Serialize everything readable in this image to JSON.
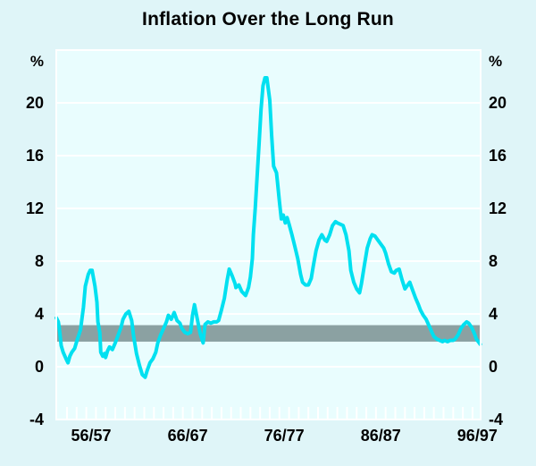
{
  "title": "Inflation Over the Long Run",
  "chart_data": {
    "type": "line",
    "title": "Inflation Over the Long Run",
    "unit_label": "%",
    "ylim": [
      -4,
      24
    ],
    "y_ticks": [
      20,
      16,
      12,
      8,
      4,
      0,
      -4
    ],
    "y_unit_shown_both_sides": true,
    "xlim_fiscal_year": [
      52.89,
      96.84
    ],
    "x_tick_labels": [
      {
        "label": "56/57",
        "year": 56.5
      },
      {
        "label": "66/67",
        "year": 66.5
      },
      {
        "label": "76/77",
        "year": 76.5
      },
      {
        "label": "86/87",
        "year": 86.5
      },
      {
        "label": "96/97",
        "year": 96.5
      }
    ],
    "minor_year_ticks": {
      "from": 54,
      "to": 96,
      "step": 1
    },
    "grid": true,
    "legend": "none",
    "target_band": {
      "low": 1.9,
      "high": 3.15,
      "color": "#8ba1a2"
    },
    "colors": {
      "outer_background": "#dff5f8",
      "plot_background": "#e9fdfe",
      "gridline": "#ffffff",
      "line": "#00e0f0",
      "text": "#000000"
    },
    "series": [
      {
        "name": "Inflation",
        "color": "#00e0f0",
        "x_fiscal_year": [
          52.9,
          53.1,
          53.2,
          53.4,
          53.6,
          53.9,
          54.1,
          54.3,
          54.5,
          54.8,
          55.0,
          55.4,
          55.7,
          55.9,
          56.2,
          56.4,
          56.6,
          56.9,
          57.1,
          57.2,
          57.4,
          57.5,
          57.7,
          57.9,
          58.0,
          58.2,
          58.4,
          58.7,
          59.0,
          59.3,
          59.6,
          59.8,
          60.1,
          60.4,
          60.7,
          60.9,
          61.2,
          61.5,
          61.8,
          62.1,
          62.3,
          62.6,
          62.9,
          63.2,
          63.4,
          63.7,
          64.0,
          64.3,
          64.5,
          64.8,
          65.1,
          65.4,
          65.7,
          65.9,
          66.2,
          66.5,
          66.8,
          67.0,
          67.2,
          67.5,
          67.8,
          68.1,
          68.3,
          68.6,
          68.9,
          69.2,
          69.5,
          69.7,
          70.0,
          70.3,
          70.6,
          70.8,
          71.1,
          71.4,
          71.5,
          71.8,
          72.1,
          72.5,
          72.8,
          73.0,
          73.2,
          73.3,
          73.5,
          73.7,
          73.9,
          74.1,
          74.3,
          74.5,
          74.7,
          75.0,
          75.2,
          75.4,
          75.7,
          75.8,
          76.0,
          76.2,
          76.4,
          76.6,
          76.8,
          77.0,
          77.3,
          77.6,
          77.9,
          78.2,
          78.4,
          78.7,
          79.0,
          79.3,
          79.5,
          79.8,
          80.1,
          80.4,
          80.7,
          80.9,
          81.2,
          81.5,
          81.8,
          82.0,
          82.3,
          82.6,
          82.9,
          83.2,
          83.4,
          83.7,
          84.0,
          84.3,
          84.5,
          84.8,
          85.1,
          85.4,
          85.6,
          85.9,
          86.2,
          86.5,
          86.8,
          87.0,
          87.3,
          87.6,
          87.9,
          88.1,
          88.4,
          88.7,
          89.0,
          89.3,
          89.5,
          89.8,
          90.1,
          90.4,
          90.6,
          90.9,
          91.2,
          91.5,
          91.8,
          92.0,
          92.3,
          92.6,
          92.9,
          93.1,
          93.4,
          93.7,
          94.0,
          94.2,
          94.5,
          94.8,
          95.1,
          95.4,
          95.6,
          95.9,
          96.2,
          96.4,
          96.7,
          96.8
        ],
        "values": [
          3.7,
          3.4,
          2.9,
          1.6,
          1.1,
          0.6,
          0.3,
          0.8,
          1.1,
          1.4,
          1.9,
          2.8,
          4.5,
          6.1,
          7.0,
          7.3,
          7.3,
          6.1,
          4.9,
          3.4,
          2.6,
          1.1,
          0.8,
          1.0,
          0.7,
          1.2,
          1.5,
          1.3,
          1.8,
          2.4,
          3.0,
          3.6,
          4.0,
          4.2,
          3.5,
          2.3,
          1.0,
          0.1,
          -0.6,
          -0.8,
          -0.3,
          0.3,
          0.6,
          1.1,
          1.8,
          2.4,
          2.9,
          3.4,
          3.9,
          3.6,
          4.1,
          3.5,
          3.3,
          2.9,
          2.6,
          2.5,
          2.6,
          3.9,
          4.7,
          3.6,
          2.5,
          1.8,
          3.2,
          3.4,
          3.3,
          3.4,
          3.4,
          3.5,
          4.3,
          5.2,
          6.6,
          7.4,
          6.9,
          6.3,
          6.0,
          6.2,
          5.7,
          5.4,
          6.0,
          6.8,
          8.2,
          10.0,
          12.0,
          14.5,
          17.0,
          19.5,
          21.3,
          21.9,
          21.9,
          20.2,
          17.5,
          15.2,
          14.7,
          14.0,
          12.5,
          11.2,
          11.5,
          10.9,
          11.3,
          10.8,
          10.0,
          9.1,
          8.2,
          7.0,
          6.4,
          6.2,
          6.2,
          6.7,
          7.6,
          8.8,
          9.6,
          10.0,
          9.6,
          9.5,
          10.0,
          10.7,
          11.0,
          10.9,
          10.8,
          10.7,
          10.0,
          8.8,
          7.3,
          6.4,
          5.9,
          5.6,
          6.3,
          7.7,
          9.0,
          9.7,
          10.0,
          9.9,
          9.6,
          9.3,
          9.0,
          8.6,
          7.8,
          7.2,
          7.1,
          7.3,
          7.4,
          6.6,
          5.9,
          6.2,
          6.4,
          5.8,
          5.2,
          4.7,
          4.3,
          3.9,
          3.6,
          3.1,
          2.6,
          2.3,
          2.1,
          2.0,
          1.9,
          2.0,
          1.9,
          2.0,
          2.0,
          2.1,
          2.4,
          2.9,
          3.2,
          3.4,
          3.3,
          3.0,
          2.5,
          2.1,
          1.8,
          1.7
        ]
      }
    ]
  }
}
